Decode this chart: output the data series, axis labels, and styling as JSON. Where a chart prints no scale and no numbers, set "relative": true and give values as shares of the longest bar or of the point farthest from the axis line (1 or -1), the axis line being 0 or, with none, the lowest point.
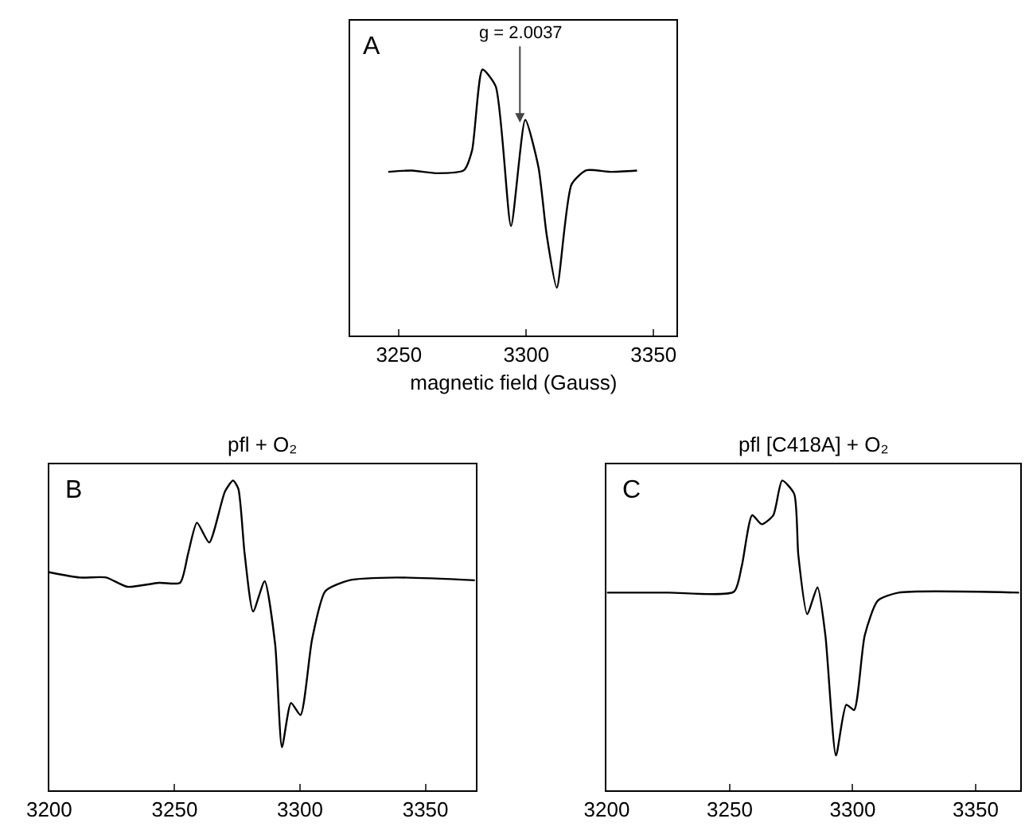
{
  "chart_data": [
    {
      "type": "line",
      "relative": true,
      "xlabel": "magnetic field (Gauss)",
      "annotations": [
        "A",
        {
          "text": "g = 2.0037",
          "x": 3297.5,
          "y": 0.8
        }
      ],
      "xlim": [
        3231,
        3359
      ],
      "xticks": [
        3250,
        3300,
        3350
      ],
      "tick_labels": "x",
      "grid": false,
      "marker": "none",
      "line_style": "solid",
      "series": [
        {
          "color": "#000000",
          "x": [
            3245.8,
            3255,
            3265,
            3275.5,
            3278.7,
            3282.8,
            3288,
            3294,
            3299.6,
            3304.8,
            3308,
            3312,
            3317.8,
            3323.6,
            3333,
            3343.5
          ],
          "values": [
            0.615,
            0.62,
            0.61,
            0.621,
            0.695,
            1,
            0.937,
            0.411,
            0.811,
            0.632,
            0.379,
            0.179,
            0.568,
            0.621,
            0.615,
            0.62
          ]
        }
      ]
    },
    {
      "type": "line",
      "relative": true,
      "title": "pfl + O₂",
      "annotations": [
        "B"
      ],
      "xlim": [
        3200,
        3370
      ],
      "xticks": [
        3200,
        3250,
        3300,
        3350
      ],
      "tick_labels": "x",
      "grid": false,
      "marker": "none",
      "line_style": "solid",
      "series": [
        {
          "color": "#000000",
          "x": [
            3200,
            3212.2,
            3222.7,
            3231.2,
            3243.8,
            3252.2,
            3255.4,
            3258.9,
            3263.8,
            3270.1,
            3273.3,
            3275.4,
            3277.9,
            3281.3,
            3285.9,
            3290.1,
            3292.8,
            3296.4,
            3300.2,
            3304.8,
            3310.1,
            3319.6,
            3338.5,
            3369.7
          ],
          "values": [
            0.704,
            0.687,
            0.687,
            0.657,
            0.67,
            0.67,
            0.765,
            0.864,
            0.8,
            0.965,
            1,
            0.974,
            0.765,
            0.577,
            0.675,
            0.47,
            0.139,
            0.282,
            0.243,
            0.487,
            0.643,
            0.678,
            0.687,
            0.678
          ]
        }
      ]
    },
    {
      "type": "line",
      "relative": true,
      "title": "pfl [C418A] + O₂",
      "annotations": [
        "C"
      ],
      "xlim": [
        3200,
        3368
      ],
      "xticks": [
        3200,
        3250,
        3300,
        3350
      ],
      "tick_labels": "x",
      "grid": false,
      "marker": "none",
      "line_style": "solid",
      "series": [
        {
          "color": "#000000",
          "x": [
            3200,
            3225.1,
            3251.7,
            3254.9,
            3259.1,
            3263,
            3267.7,
            3271.3,
            3276.2,
            3277.9,
            3281.5,
            3285.7,
            3288.9,
            3293.2,
            3297.4,
            3300.6,
            3304.9,
            3310.2,
            3318.7,
            3367.7
          ],
          "values": [
            0.638,
            0.638,
            0.641,
            0.724,
            0.888,
            0.859,
            0.888,
            1,
            0.957,
            0.759,
            0.569,
            0.655,
            0.5,
            0.112,
            0.276,
            0.259,
            0.5,
            0.612,
            0.638,
            0.638
          ]
        }
      ]
    }
  ]
}
